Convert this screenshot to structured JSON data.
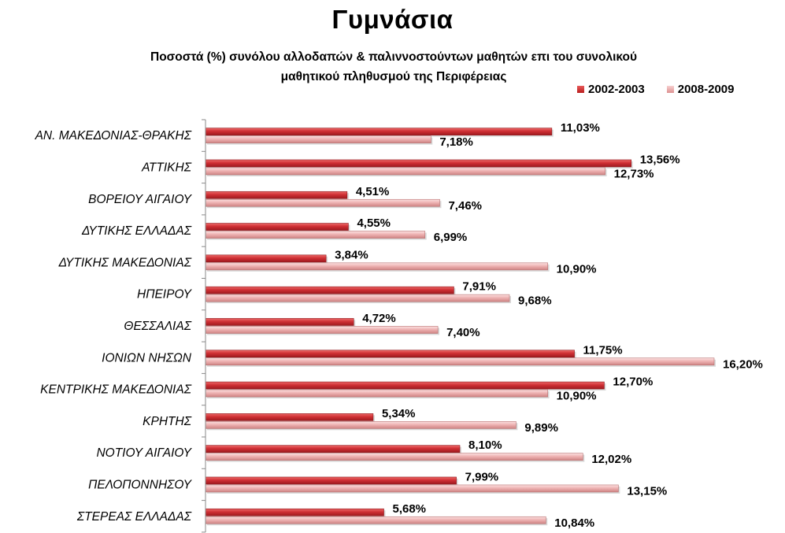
{
  "chart_data": {
    "type": "bar",
    "orientation": "horizontal",
    "title": "Γυμνάσια",
    "subtitle_lines": [
      "Ποσοστά (%) συνόλου αλλοδαπών & παλιννοστούντων μαθητών επι  του συνολικού",
      "μαθητικού πληθυσμού της Περιφέρειας"
    ],
    "xlabel": "",
    "ylabel": "",
    "xlim": [
      0,
      16.2
    ],
    "grid": false,
    "legend_position": "top-right",
    "categories": [
      "ΑΝ. ΜΑΚΕΔΟΝΙΑΣ-ΘΡΑΚΗΣ",
      "ΑΤΤΙΚΗΣ",
      "ΒΟΡΕΙΟΥ ΑΙΓΑΙΟΥ",
      "ΔΥΤΙΚΗΣ ΕΛΛΑΔΑΣ",
      "ΔΥΤΙΚΗΣ ΜΑΚΕΔΟΝΙΑΣ",
      "ΗΠΕΙΡΟΥ",
      "ΘΕΣΣΑΛΙΑΣ",
      "ΙΟΝΙΩΝ ΝΗΣΩΝ",
      "ΚΕΝΤΡΙΚΗΣ ΜΑΚΕΔΟΝΙΑΣ",
      "ΚΡΗΤΗΣ",
      "ΝΟΤΙΟΥ ΑΙΓΑΙΟΥ",
      "ΠΕΛΟΠΟΝΝΗΣΟΥ",
      "ΣΤΕΡΕΑΣ ΕΛΛΑΔΑΣ"
    ],
    "series": [
      {
        "name": "2002-2003",
        "color": "#c0272d",
        "values": [
          11.03,
          13.56,
          4.51,
          4.55,
          3.84,
          7.91,
          4.72,
          11.75,
          12.7,
          5.34,
          8.1,
          7.99,
          5.68
        ],
        "labels": [
          "11,03%",
          "13,56%",
          "4,51%",
          "4,55%",
          "3,84%",
          "7,91%",
          "4,72%",
          "11,75%",
          "12,70%",
          "5,34%",
          "8,10%",
          "7,99%",
          "5,68%"
        ]
      },
      {
        "name": "2008-2009",
        "color": "#e8a6a6",
        "values": [
          7.18,
          12.73,
          7.46,
          6.99,
          10.9,
          9.68,
          7.4,
          16.2,
          10.9,
          9.89,
          12.02,
          13.15,
          10.84
        ],
        "labels": [
          "7,18%",
          "12,73%",
          "7,46%",
          "6,99%",
          "10,90%",
          "9,68%",
          "7,40%",
          "16,20%",
          "10,90%",
          "9,89%",
          "12,02%",
          "13,15%",
          "10,84%"
        ]
      }
    ]
  }
}
